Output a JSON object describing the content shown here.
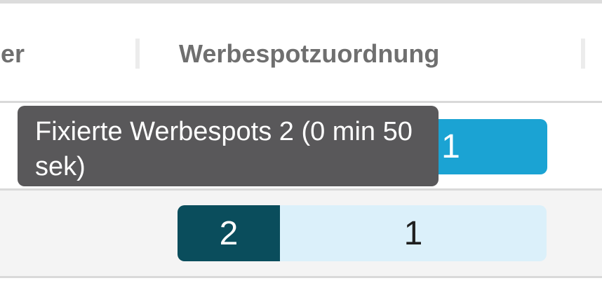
{
  "header": {
    "partial_left_label": "er",
    "title": "Werbespotzuordnung",
    "text_color": "#6f6f6f"
  },
  "tooltip": {
    "text": "Fixierte Werbespots 2 (0 min 50 sek)",
    "bg": "#59585a",
    "text_color": "#ffffff"
  },
  "rows": [
    {
      "bars": [
        {
          "value": "1",
          "bg": "#1ba3d3",
          "text_color": "#ffffff"
        }
      ]
    },
    {
      "bars": [
        {
          "value": "2",
          "bg": "#0a4d5c",
          "text_color": "#ffffff"
        },
        {
          "value": "1",
          "bg": "#dbf0fa",
          "text_color": "#1f1f1f"
        }
      ]
    }
  ],
  "colors": {
    "top_border": "#dcdcdc",
    "separator": "#d9d9d9",
    "column_divider": "#ececec",
    "row2_background": "#f4f4f4"
  }
}
